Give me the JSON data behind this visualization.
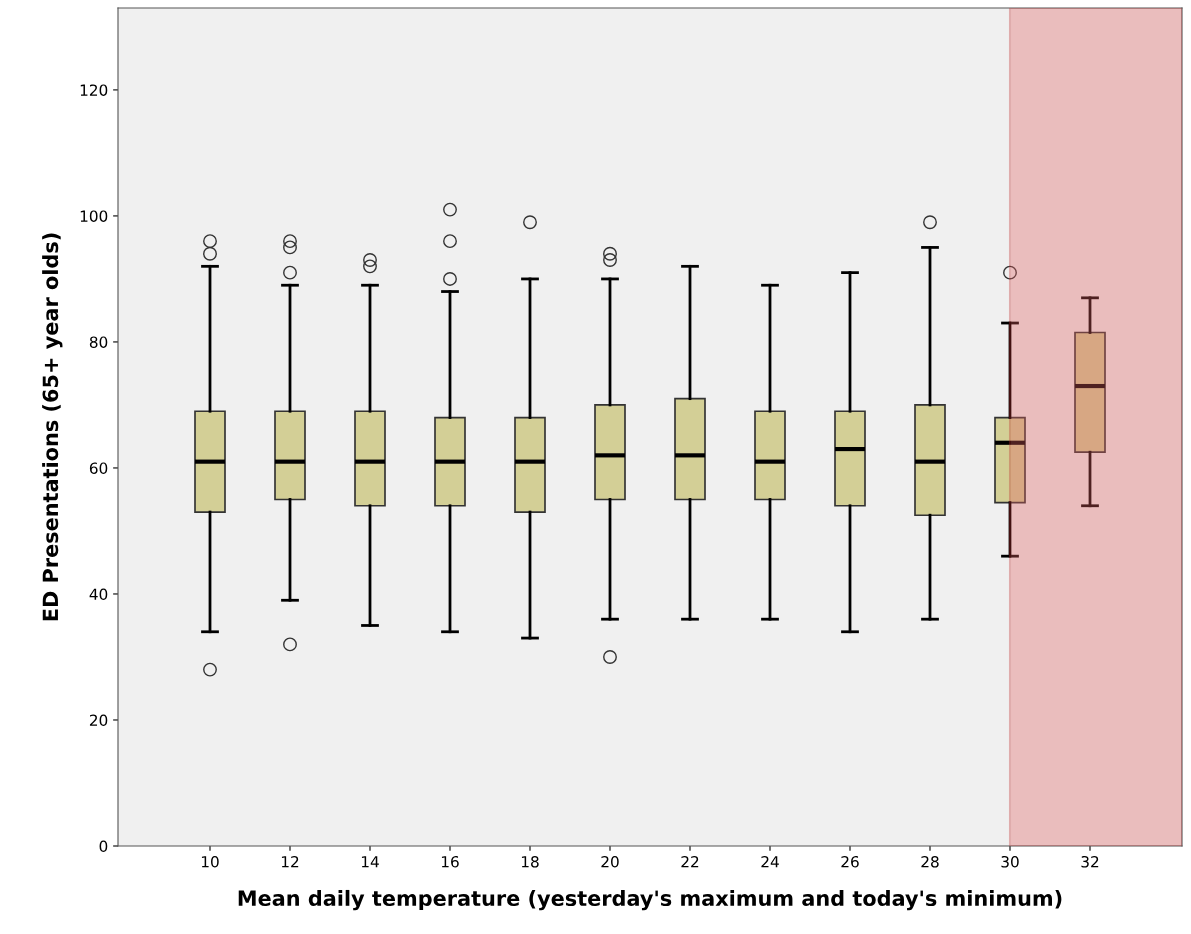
{
  "chart_data": {
    "type": "box",
    "xlabel": "Mean daily temperature (yesterday's maximum and today's minimum)",
    "ylabel": "ED Presentations (65+ year olds)",
    "x": [
      10,
      12,
      14,
      16,
      18,
      20,
      22,
      24,
      26,
      28,
      30,
      32
    ],
    "series": [
      {
        "color": "#d3cf96",
        "boxes": [
          {
            "low": 34,
            "q1": 53,
            "median": 61,
            "q3": 69,
            "high": 92,
            "outliers": [
              94,
              96,
              28
            ]
          },
          {
            "low": 39,
            "q1": 55,
            "median": 61,
            "q3": 69,
            "high": 89,
            "outliers": [
              91,
              95,
              96,
              32
            ]
          },
          {
            "low": 35,
            "q1": 54,
            "median": 61,
            "q3": 69,
            "high": 89,
            "outliers": [
              92,
              93
            ]
          },
          {
            "low": 34,
            "q1": 54,
            "median": 61,
            "q3": 68,
            "high": 88,
            "outliers": [
              90,
              96,
              101
            ]
          },
          {
            "low": 33,
            "q1": 53,
            "median": 61,
            "q3": 68,
            "high": 90,
            "outliers": [
              99
            ]
          },
          {
            "low": 36,
            "q1": 55,
            "median": 62,
            "q3": 70,
            "high": 90,
            "outliers": [
              93,
              94,
              30
            ]
          },
          {
            "low": 36,
            "q1": 55,
            "median": 62,
            "q3": 71,
            "high": 92
          },
          {
            "low": 36,
            "q1": 55,
            "median": 61,
            "q3": 69,
            "high": 89
          },
          {
            "low": 34,
            "q1": 54,
            "median": 63,
            "q3": 69,
            "high": 91
          },
          {
            "low": 36,
            "q1": 52.5,
            "median": 61,
            "q3": 70,
            "high": 95,
            "outliers": [
              99
            ]
          },
          {
            "low": 46,
            "q1": 54.5,
            "median": 64,
            "q3": 68,
            "high": 83,
            "outliers": [
              91
            ]
          },
          {
            "low": 54,
            "q1": 62.5,
            "median": 73,
            "q3": 81.5,
            "high": 87
          }
        ]
      }
    ],
    "xlim": [
      7.7,
      34.3
    ],
    "xticks": [
      10,
      12,
      14,
      16,
      18,
      20,
      22,
      24,
      26,
      28,
      30,
      32
    ],
    "ylim": [
      0,
      133
    ],
    "yticks": [
      0,
      20,
      40,
      60,
      80,
      100,
      120
    ],
    "bands": [
      {
        "axis": "x",
        "from": 30,
        "to": 34.3,
        "color": "#e06060"
      }
    ],
    "grid": false
  }
}
